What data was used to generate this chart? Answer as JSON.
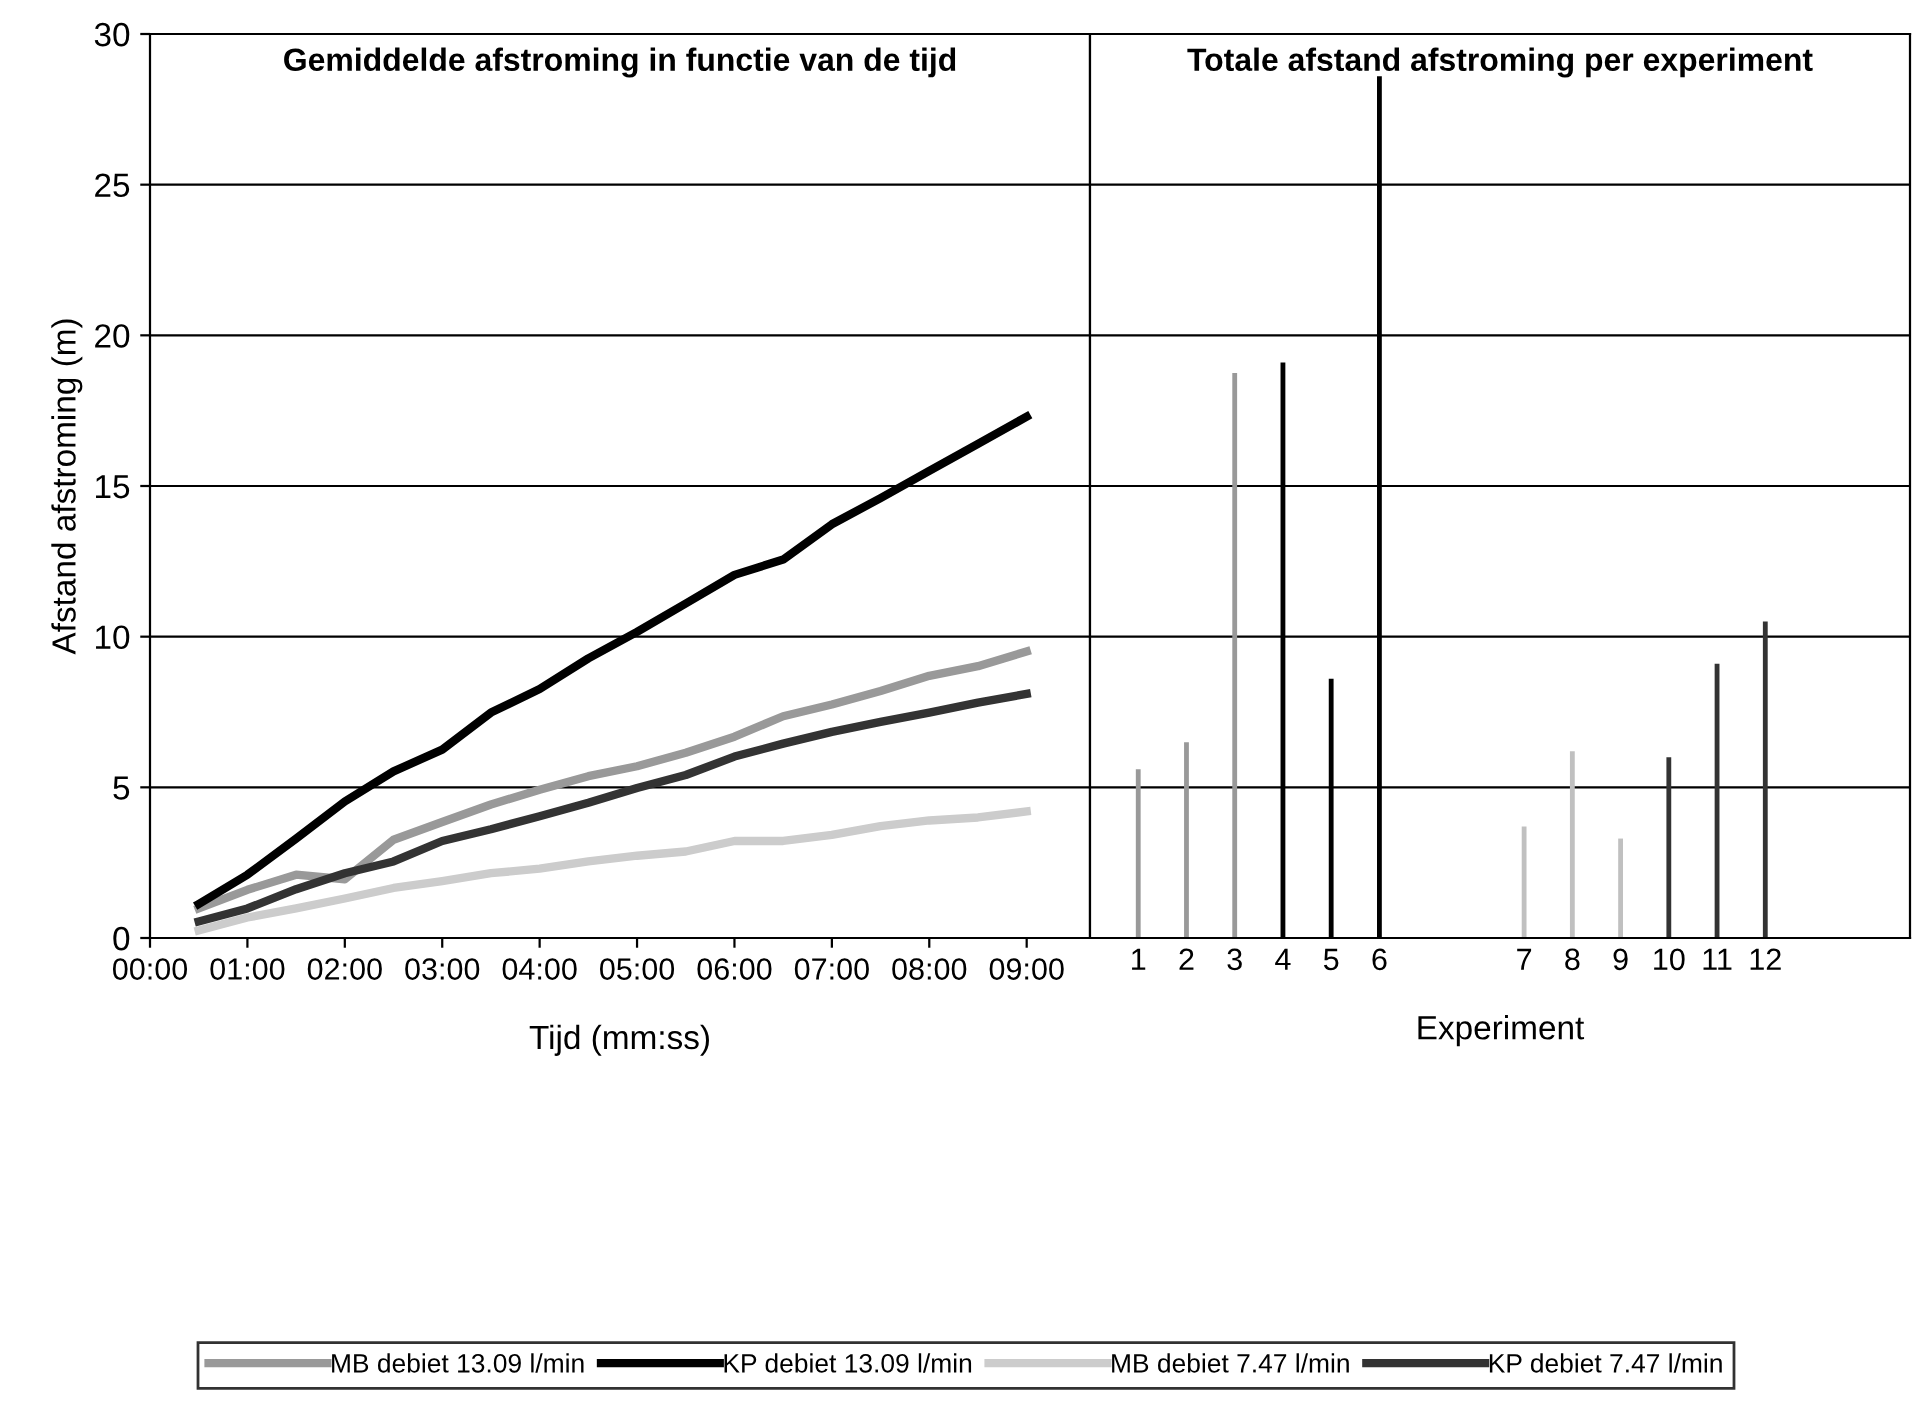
{
  "chart_data": [
    {
      "type": "line",
      "title": "Gemiddelde afstroming in functie van de tijd",
      "xlabel": "Tijd (mm:ss)",
      "ylabel": "Afstand afstroming (m)",
      "x": [
        0.5,
        1,
        1.5,
        2,
        2.5,
        3,
        3.5,
        4,
        4.5,
        5,
        5.5,
        6,
        6.5,
        7,
        7.5,
        8,
        8.5,
        9
      ],
      "series": [
        {
          "name": "MB debiet 13.09 l/min",
          "color": "#999999",
          "values": [
            0.98,
            1.6,
            2.1,
            1.95,
            3.26,
            3.85,
            4.43,
            4.92,
            5.37,
            5.7,
            6.15,
            6.68,
            7.36,
            7.75,
            8.2,
            8.7,
            9.02,
            9.51
          ]
        },
        {
          "name": "KP debiet 13.09 l/min",
          "color": "#000000",
          "values": [
            1.13,
            2.1,
            3.3,
            4.53,
            5.53,
            6.25,
            7.48,
            8.26,
            9.28,
            10.16,
            11.1,
            12.05,
            12.56,
            13.73,
            14.6,
            15.5,
            16.4,
            17.3
          ]
        },
        {
          "name": "MB debiet 7.47 l/min",
          "color": "#cccccc",
          "values": [
            0.25,
            0.68,
            0.98,
            1.31,
            1.66,
            1.89,
            2.15,
            2.3,
            2.54,
            2.73,
            2.87,
            3.22,
            3.22,
            3.42,
            3.71,
            3.9,
            4.0,
            4.2
          ]
        },
        {
          "name": "KP debiet 7.47 l/min",
          "color": "#333333",
          "values": [
            0.55,
            0.98,
            1.62,
            2.15,
            2.54,
            3.22,
            3.61,
            4.04,
            4.49,
            4.98,
            5.41,
            6.02,
            6.45,
            6.84,
            7.17,
            7.48,
            7.81,
            8.1
          ]
        }
      ],
      "xlim": [
        0,
        9.65
      ],
      "xticks": [
        {
          "value": 0,
          "label": "00:00"
        },
        {
          "value": 1,
          "label": "01:00"
        },
        {
          "value": 2,
          "label": "02:00"
        },
        {
          "value": 3,
          "label": "03:00"
        },
        {
          "value": 4,
          "label": "04:00"
        },
        {
          "value": 5,
          "label": "05:00"
        },
        {
          "value": 6,
          "label": "06:00"
        },
        {
          "value": 7,
          "label": "07:00"
        },
        {
          "value": 8,
          "label": "08:00"
        },
        {
          "value": 9,
          "label": "09:00"
        }
      ],
      "ylim": [
        0,
        30
      ],
      "yticks": [
        0,
        5,
        10,
        15,
        20,
        25,
        30
      ],
      "grid": "y",
      "legend": "bottom",
      "marker": "none",
      "line_style": "solid"
    },
    {
      "type": "bar",
      "title": "Totale afstand afstroming per experiment",
      "xlabel": "Experiment",
      "categories": [
        null,
        "1",
        "2",
        "3",
        "4",
        "5",
        "6",
        null,
        null,
        "7",
        "8",
        "9",
        "10",
        "11",
        "12",
        null,
        null,
        null
      ],
      "values": [
        null,
        5.6,
        6.5,
        18.75,
        19.1,
        8.6,
        28.6,
        null,
        null,
        3.7,
        6.2,
        3.3,
        6.0,
        9.1,
        10.5,
        null,
        null,
        null
      ],
      "colors": [
        "#999999",
        "#999999",
        "#999999",
        "#999999",
        "#000000",
        "#000000",
        "#000000",
        "#999999",
        "#999999",
        "#c0c0c0",
        "#c0c0c0",
        "#c0c0c0",
        "#333333",
        "#333333",
        "#333333",
        "#999999",
        "#999999",
        "#999999"
      ],
      "ylim": [
        0,
        30
      ],
      "yticks": [
        0,
        5,
        10,
        15,
        20,
        25,
        30
      ],
      "grid": "y",
      "tick_labels": "x"
    }
  ]
}
